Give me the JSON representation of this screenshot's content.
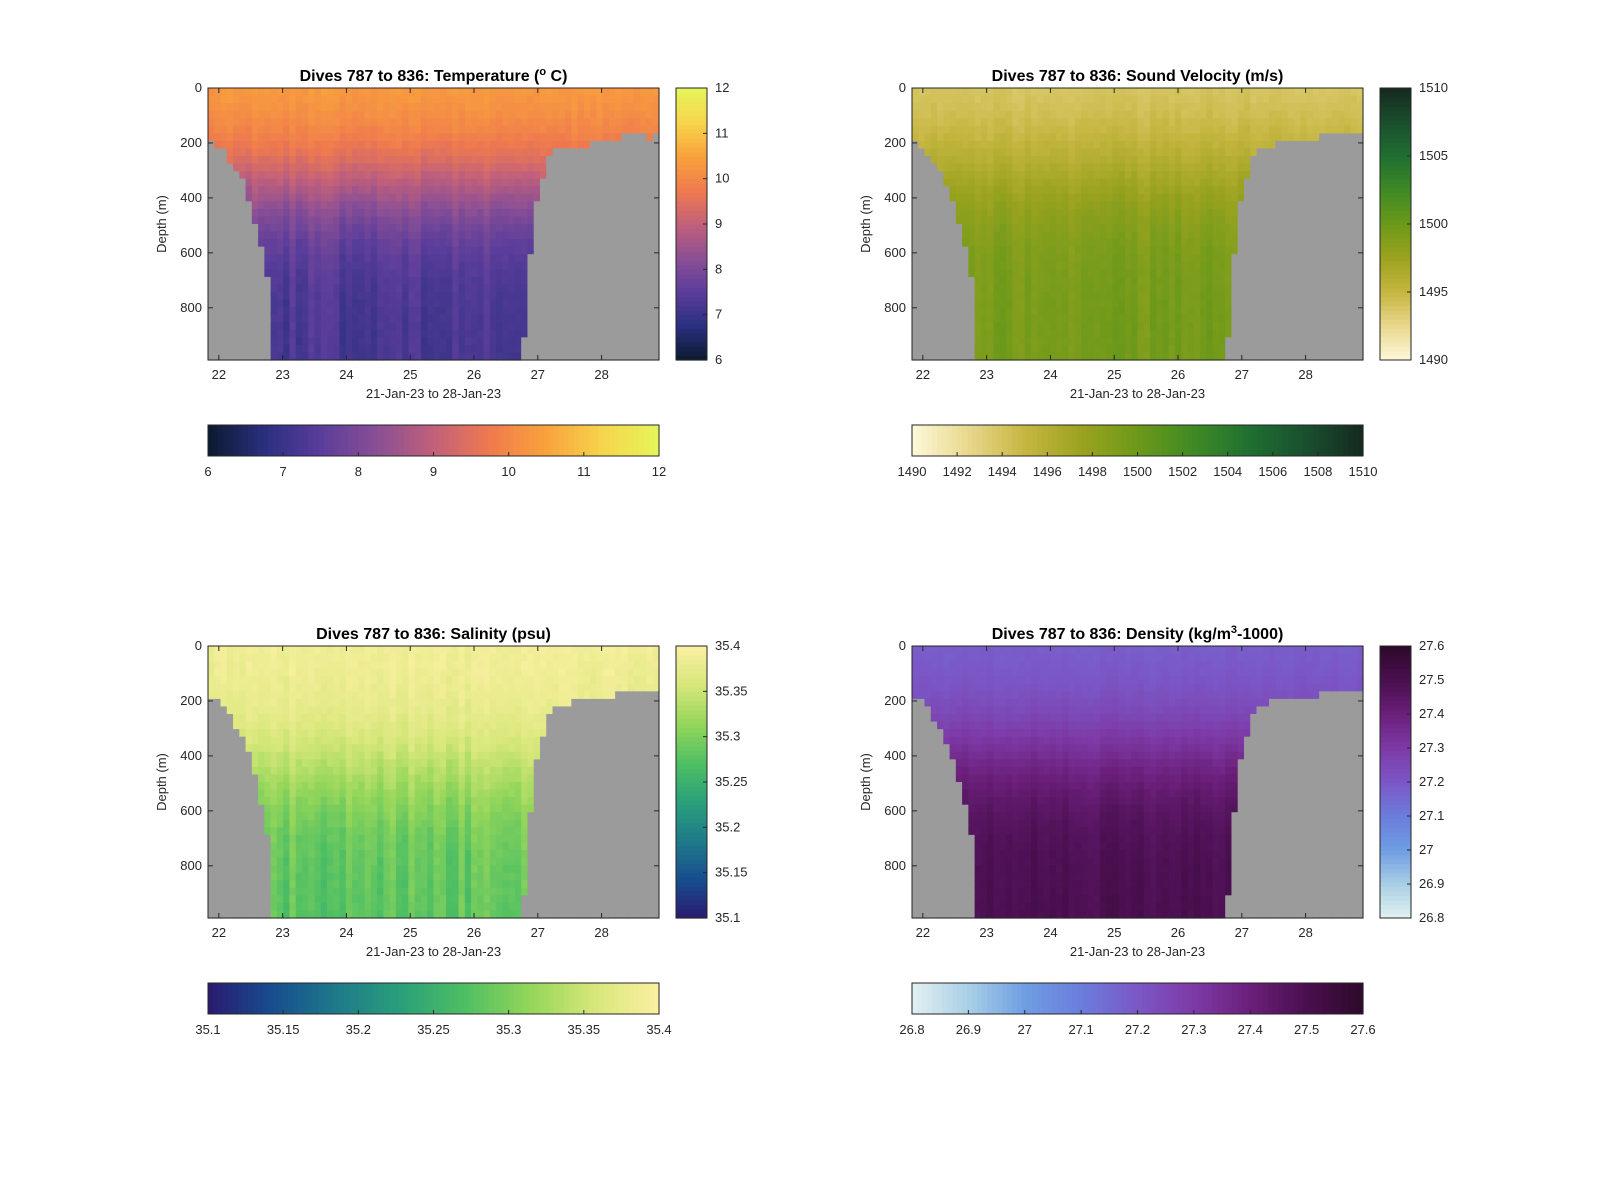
{
  "figure": {
    "background": "#ffffff",
    "land_color": "#9b9b9b"
  },
  "chart_data": [
    {
      "type": "heatmap",
      "title_prefix": "Dives 787 to 836: Temperature (",
      "title_sup": "o",
      "title_suffix": " C)",
      "xlabel": "21-Jan-23 to 28-Jan-23",
      "ylabel": "Depth (m)",
      "xlim": [
        21.83,
        28.9
      ],
      "ylim": [
        0,
        990
      ],
      "y_reversed": true,
      "x_ticks": [
        "22",
        "23",
        "24",
        "25",
        "26",
        "27",
        "28"
      ],
      "x_tick_values": [
        22,
        23,
        24,
        25,
        26,
        27,
        28
      ],
      "y_ticks": [
        "0",
        "200",
        "400",
        "600",
        "800"
      ],
      "y_tick_values": [
        0,
        200,
        400,
        600,
        800
      ],
      "clim": [
        6,
        12
      ],
      "colormap": [
        "#0b1a2e",
        "#2a2f7f",
        "#5a3d9b",
        "#8a4f95",
        "#c1607a",
        "#ef7a4e",
        "#f9a23c",
        "#f6d54c",
        "#e6f55a"
      ],
      "side_colorbar_ticks": [
        "6",
        "7",
        "8",
        "9",
        "10",
        "11",
        "12"
      ],
      "side_colorbar_values": [
        6,
        7,
        8,
        9,
        10,
        11,
        12
      ],
      "bottom_colorbar_ticks": [
        "6",
        "7",
        "8",
        "9",
        "10",
        "11",
        "12"
      ],
      "bottom_colorbar_values": [
        6,
        7,
        8,
        9,
        10,
        11,
        12
      ],
      "field": {
        "surface": 10.5,
        "deep": 7.2,
        "thermocline": 350,
        "noise": 0.35
      },
      "bottom_depth": [
        [
          21.83,
          190
        ],
        [
          22.0,
          210
        ],
        [
          22.2,
          270
        ],
        [
          22.4,
          350
        ],
        [
          22.55,
          470
        ],
        [
          22.7,
          610
        ],
        [
          22.8,
          720
        ],
        [
          22.85,
          990
        ],
        [
          26.75,
          990
        ],
        [
          26.8,
          870
        ],
        [
          26.9,
          560
        ],
        [
          27.0,
          400
        ],
        [
          27.1,
          310
        ],
        [
          27.2,
          240
        ],
        [
          27.4,
          220
        ],
        [
          27.7,
          210
        ],
        [
          28.0,
          200
        ],
        [
          28.3,
          180
        ],
        [
          28.6,
          160
        ],
        [
          28.75,
          200
        ],
        [
          28.9,
          160
        ]
      ]
    },
    {
      "type": "heatmap",
      "title_prefix": "Dives 787 to 836: Sound Velocity (m/s)",
      "title_sup": "",
      "title_suffix": "",
      "xlabel": "21-Jan-23 to 28-Jan-23",
      "ylabel": "Depth (m)",
      "xlim": [
        21.83,
        28.9
      ],
      "ylim": [
        0,
        990
      ],
      "y_reversed": true,
      "x_ticks": [
        "22",
        "23",
        "24",
        "25",
        "26",
        "27",
        "28"
      ],
      "x_tick_values": [
        22,
        23,
        24,
        25,
        26,
        27,
        28
      ],
      "y_ticks": [
        "0",
        "200",
        "400",
        "600",
        "800"
      ],
      "y_tick_values": [
        0,
        200,
        400,
        600,
        800
      ],
      "clim": [
        1490,
        1510
      ],
      "colormap": [
        "#fdf8d9",
        "#e9d88d",
        "#c6b641",
        "#9ba31f",
        "#6c991a",
        "#3f8a25",
        "#1f6f31",
        "#1a4f2e",
        "#15291f"
      ],
      "side_colorbar_ticks": [
        "1490",
        "1495",
        "1500",
        "1505",
        "1510"
      ],
      "side_colorbar_values": [
        1490,
        1495,
        1500,
        1505,
        1510
      ],
      "bottom_colorbar_ticks": [
        "1490",
        "1492",
        "1494",
        "1496",
        "1498",
        "1500",
        "1502",
        "1504",
        "1506",
        "1508",
        "1510"
      ],
      "bottom_colorbar_values": [
        1490,
        1492,
        1494,
        1496,
        1498,
        1500,
        1502,
        1504,
        1506,
        1508,
        1510
      ],
      "field": {
        "surface": 1493.5,
        "deep": 1499.5,
        "thermocline": 300,
        "noise": 0.9
      },
      "bottom_depth": [
        [
          21.83,
          190
        ],
        [
          22.0,
          210
        ],
        [
          22.2,
          280
        ],
        [
          22.4,
          380
        ],
        [
          22.55,
          480
        ],
        [
          22.7,
          600
        ],
        [
          22.8,
          760
        ],
        [
          22.85,
          990
        ],
        [
          26.75,
          990
        ],
        [
          26.8,
          870
        ],
        [
          26.9,
          560
        ],
        [
          27.0,
          400
        ],
        [
          27.1,
          300
        ],
        [
          27.2,
          230
        ],
        [
          27.4,
          210
        ],
        [
          27.7,
          200
        ],
        [
          28.0,
          195
        ],
        [
          28.3,
          170
        ],
        [
          28.6,
          150
        ],
        [
          28.75,
          165
        ],
        [
          28.9,
          150
        ]
      ]
    },
    {
      "type": "heatmap",
      "title_prefix": "Dives 787 to 836: Salinity (psu)",
      "title_sup": "",
      "title_suffix": "",
      "xlabel": "21-Jan-23 to 28-Jan-23",
      "ylabel": "Depth (m)",
      "xlim": [
        21.83,
        28.9
      ],
      "ylim": [
        0,
        990
      ],
      "y_reversed": true,
      "x_ticks": [
        "22",
        "23",
        "24",
        "25",
        "26",
        "27",
        "28"
      ],
      "x_tick_values": [
        22,
        23,
        24,
        25,
        26,
        27,
        28
      ],
      "y_ticks": [
        "0",
        "200",
        "400",
        "600",
        "800"
      ],
      "y_tick_values": [
        0,
        200,
        400,
        600,
        800
      ],
      "clim": [
        35.1,
        35.4
      ],
      "colormap": [
        "#2a1a6e",
        "#174d8f",
        "#1f7a8a",
        "#2aa07a",
        "#4fbf63",
        "#94d65a",
        "#d7e77a",
        "#fbf0a2"
      ],
      "side_colorbar_ticks": [
        "35.1",
        "35.15",
        "35.2",
        "35.25",
        "35.3",
        "35.35",
        "35.4"
      ],
      "side_colorbar_values": [
        35.1,
        35.15,
        35.2,
        35.25,
        35.3,
        35.35,
        35.4
      ],
      "bottom_colorbar_ticks": [
        "35.1",
        "35.15",
        "35.2",
        "35.25",
        "35.3",
        "35.35",
        "35.4"
      ],
      "bottom_colorbar_values": [
        35.1,
        35.15,
        35.2,
        35.25,
        35.3,
        35.35,
        35.4
      ],
      "field": {
        "surface": 35.39,
        "deep": 35.28,
        "thermocline": 450,
        "noise": 0.025
      },
      "bottom_depth": [
        [
          21.83,
          180
        ],
        [
          22.0,
          200
        ],
        [
          22.2,
          260
        ],
        [
          22.4,
          350
        ],
        [
          22.55,
          450
        ],
        [
          22.7,
          600
        ],
        [
          22.8,
          730
        ],
        [
          22.85,
          990
        ],
        [
          26.75,
          990
        ],
        [
          26.8,
          880
        ],
        [
          26.9,
          560
        ],
        [
          27.0,
          400
        ],
        [
          27.1,
          300
        ],
        [
          27.2,
          230
        ],
        [
          27.4,
          210
        ],
        [
          27.7,
          200
        ],
        [
          28.0,
          195
        ],
        [
          28.3,
          175
        ],
        [
          28.6,
          160
        ],
        [
          28.75,
          170
        ],
        [
          28.9,
          160
        ]
      ]
    },
    {
      "type": "heatmap",
      "title_prefix": "Dives 787 to 836: Density (kg/m",
      "title_sup": "3",
      "title_suffix": "-1000)",
      "xlabel": "21-Jan-23 to 28-Jan-23",
      "ylabel": "Depth (m)",
      "xlim": [
        21.83,
        28.9
      ],
      "ylim": [
        0,
        990
      ],
      "y_reversed": true,
      "x_ticks": [
        "22",
        "23",
        "24",
        "25",
        "26",
        "27",
        "28"
      ],
      "x_tick_values": [
        22,
        23,
        24,
        25,
        26,
        27,
        28
      ],
      "y_ticks": [
        "0",
        "200",
        "400",
        "600",
        "800"
      ],
      "y_tick_values": [
        0,
        200,
        400,
        600,
        800
      ],
      "clim": [
        26.8,
        27.6
      ],
      "colormap": [
        "#e3f1f1",
        "#a9cfe6",
        "#6f9ee2",
        "#6b7ddc",
        "#7b57c6",
        "#7d3aa6",
        "#6b1f7a",
        "#4a0f4f",
        "#2d0a2a"
      ],
      "side_colorbar_ticks": [
        "26.8",
        "26.9",
        "27",
        "27.1",
        "27.2",
        "27.3",
        "27.4",
        "27.5",
        "27.6"
      ],
      "side_colorbar_values": [
        26.8,
        26.9,
        27.0,
        27.1,
        27.2,
        27.3,
        27.4,
        27.5,
        27.6
      ],
      "bottom_colorbar_ticks": [
        "26.8",
        "26.9",
        "27",
        "27.1",
        "27.2",
        "27.3",
        "27.4",
        "27.5",
        "27.6"
      ],
      "bottom_colorbar_values": [
        26.8,
        26.9,
        27.0,
        27.1,
        27.2,
        27.3,
        27.4,
        27.5,
        27.6
      ],
      "field": {
        "surface": 27.17,
        "deep": 27.5,
        "thermocline": 380,
        "noise": 0.03
      },
      "bottom_depth": [
        [
          21.83,
          180
        ],
        [
          22.0,
          210
        ],
        [
          22.2,
          270
        ],
        [
          22.4,
          360
        ],
        [
          22.55,
          470
        ],
        [
          22.7,
          610
        ],
        [
          22.8,
          740
        ],
        [
          22.85,
          990
        ],
        [
          26.75,
          990
        ],
        [
          26.8,
          870
        ],
        [
          26.9,
          560
        ],
        [
          27.0,
          400
        ],
        [
          27.1,
          300
        ],
        [
          27.2,
          220
        ],
        [
          27.4,
          205
        ],
        [
          27.7,
          200
        ],
        [
          28.0,
          195
        ],
        [
          28.3,
          170
        ],
        [
          28.6,
          150
        ],
        [
          28.75,
          165
        ],
        [
          28.9,
          150
        ]
      ]
    }
  ]
}
